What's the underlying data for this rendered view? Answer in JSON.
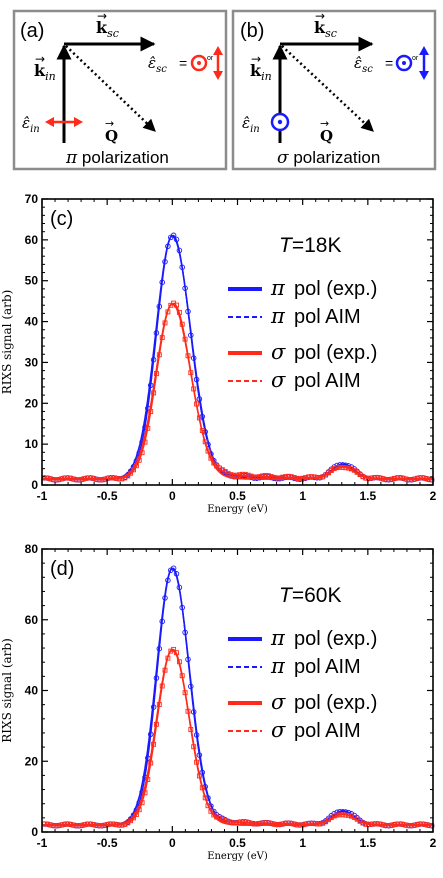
{
  "panel_a": {
    "label": "(a)",
    "k_sc": "k",
    "k_sc_sub": "sc",
    "k_in": "k",
    "k_in_sub": "in",
    "eps_sc": "ε̂",
    "eps_sc_sub": "sc",
    "eps_in": "ε̂",
    "eps_in_sub": "in",
    "eq": "=",
    "or": "or",
    "q": "Q",
    "caption_symbol": "π",
    "caption_text": "polarization"
  },
  "panel_b": {
    "label": "(b)",
    "k_sc": "k",
    "k_sc_sub": "sc",
    "k_in": "k",
    "k_in_sub": "in",
    "eps_sc": "ε̂",
    "eps_sc_sub": "sc",
    "eps_in": "ε̂",
    "eps_in_sub": "in",
    "eq": "=",
    "or": "or",
    "q": "Q",
    "caption_symbol": "σ",
    "caption_text": "polarization"
  },
  "colors": {
    "pi": "#1a1aff",
    "sigma": "#ff2a1a",
    "axis": "#000000",
    "box": "#8c8c8c"
  },
  "chart_data": [
    {
      "type": "line",
      "panel_label": "(c)",
      "annotation_T": "T",
      "annotation_value": "=18K",
      "xlabel": "Energy (eV)",
      "ylabel": "RIXS signal (arb)",
      "xlim": [
        -1,
        2
      ],
      "ylim": [
        0,
        70
      ],
      "xticks": [
        -1,
        -0.5,
        0,
        0.5,
        1,
        1.5,
        2
      ],
      "xtick_labels": [
        "-1",
        "-0.5",
        "0",
        "0.5",
        "1",
        "1.5",
        "2"
      ],
      "yticks": [
        0,
        10,
        20,
        30,
        40,
        50,
        60,
        70
      ],
      "ytick_labels": [
        "0",
        "10",
        "20",
        "30",
        "40",
        "50",
        "60",
        "70"
      ],
      "legend_position": "right",
      "legend": [
        {
          "symbol": "π",
          "text": "pol (exp.)",
          "style": "solid",
          "color": "#1a1aff"
        },
        {
          "symbol": "π",
          "text": "pol AIM",
          "style": "dashed",
          "color": "#1a1aff"
        },
        {
          "symbol": "σ",
          "text": "pol (exp.)",
          "style": "solid",
          "color": "#ff2a1a"
        },
        {
          "symbol": "σ",
          "text": "pol AIM",
          "style": "dashed",
          "color": "#ff2a1a"
        }
      ],
      "series": [
        {
          "group": "pi",
          "baseline": 1.5,
          "peak_x": 0.0,
          "peak_h": 59.5,
          "sigma_l": 0.12,
          "sigma_r": 0.135,
          "tail_h": 2.5,
          "tail_w": 0.35,
          "sat_x": 1.31,
          "sat_h": 3.6,
          "sat_w": 0.085
        },
        {
          "group": "sigma",
          "baseline": 1.5,
          "peak_x": 0.0,
          "peak_h": 42.8,
          "sigma_l": 0.12,
          "sigma_r": 0.135,
          "tail_h": 3.2,
          "tail_w": 0.42,
          "sat_x": 1.31,
          "sat_h": 2.9,
          "sat_w": 0.085
        }
      ]
    },
    {
      "type": "line",
      "panel_label": "(d)",
      "annotation_T": "T",
      "annotation_value": "=60K",
      "xlabel": "Energy (eV)",
      "ylabel": "RIXS signal (arb)",
      "xlim": [
        -1,
        2
      ],
      "ylim": [
        0,
        80
      ],
      "xticks": [
        -1,
        -0.5,
        0,
        0.5,
        1,
        1.5,
        2
      ],
      "xtick_labels": [
        "-1",
        "-0.5",
        "0",
        "0.5",
        "1",
        "1.5",
        "2"
      ],
      "yticks": [
        0,
        20,
        40,
        60,
        80
      ],
      "ytick_labels": [
        "0",
        "20",
        "40",
        "60",
        "80"
      ],
      "legend_position": "right",
      "legend": [
        {
          "symbol": "π",
          "text": "pol (exp.)",
          "style": "solid",
          "color": "#1a1aff"
        },
        {
          "symbol": "π",
          "text": "pol AIM",
          "style": "dashed",
          "color": "#1a1aff"
        },
        {
          "symbol": "σ",
          "text": "pol (exp.)",
          "style": "solid",
          "color": "#ff2a1a"
        },
        {
          "symbol": "σ",
          "text": "pol AIM",
          "style": "dashed",
          "color": "#ff2a1a"
        }
      ],
      "series": [
        {
          "group": "pi",
          "baseline": 2.0,
          "peak_x": 0.0,
          "peak_h": 72.5,
          "sigma_l": 0.115,
          "sigma_r": 0.125,
          "tail_h": 2.8,
          "tail_w": 0.38,
          "sat_x": 1.31,
          "sat_h": 3.9,
          "sat_w": 0.085
        },
        {
          "group": "sigma",
          "baseline": 2.0,
          "peak_x": 0.0,
          "peak_h": 49.5,
          "sigma_l": 0.115,
          "sigma_r": 0.125,
          "tail_h": 2.5,
          "tail_w": 0.4,
          "sat_x": 1.31,
          "sat_h": 3.0,
          "sat_w": 0.085
        }
      ]
    }
  ]
}
